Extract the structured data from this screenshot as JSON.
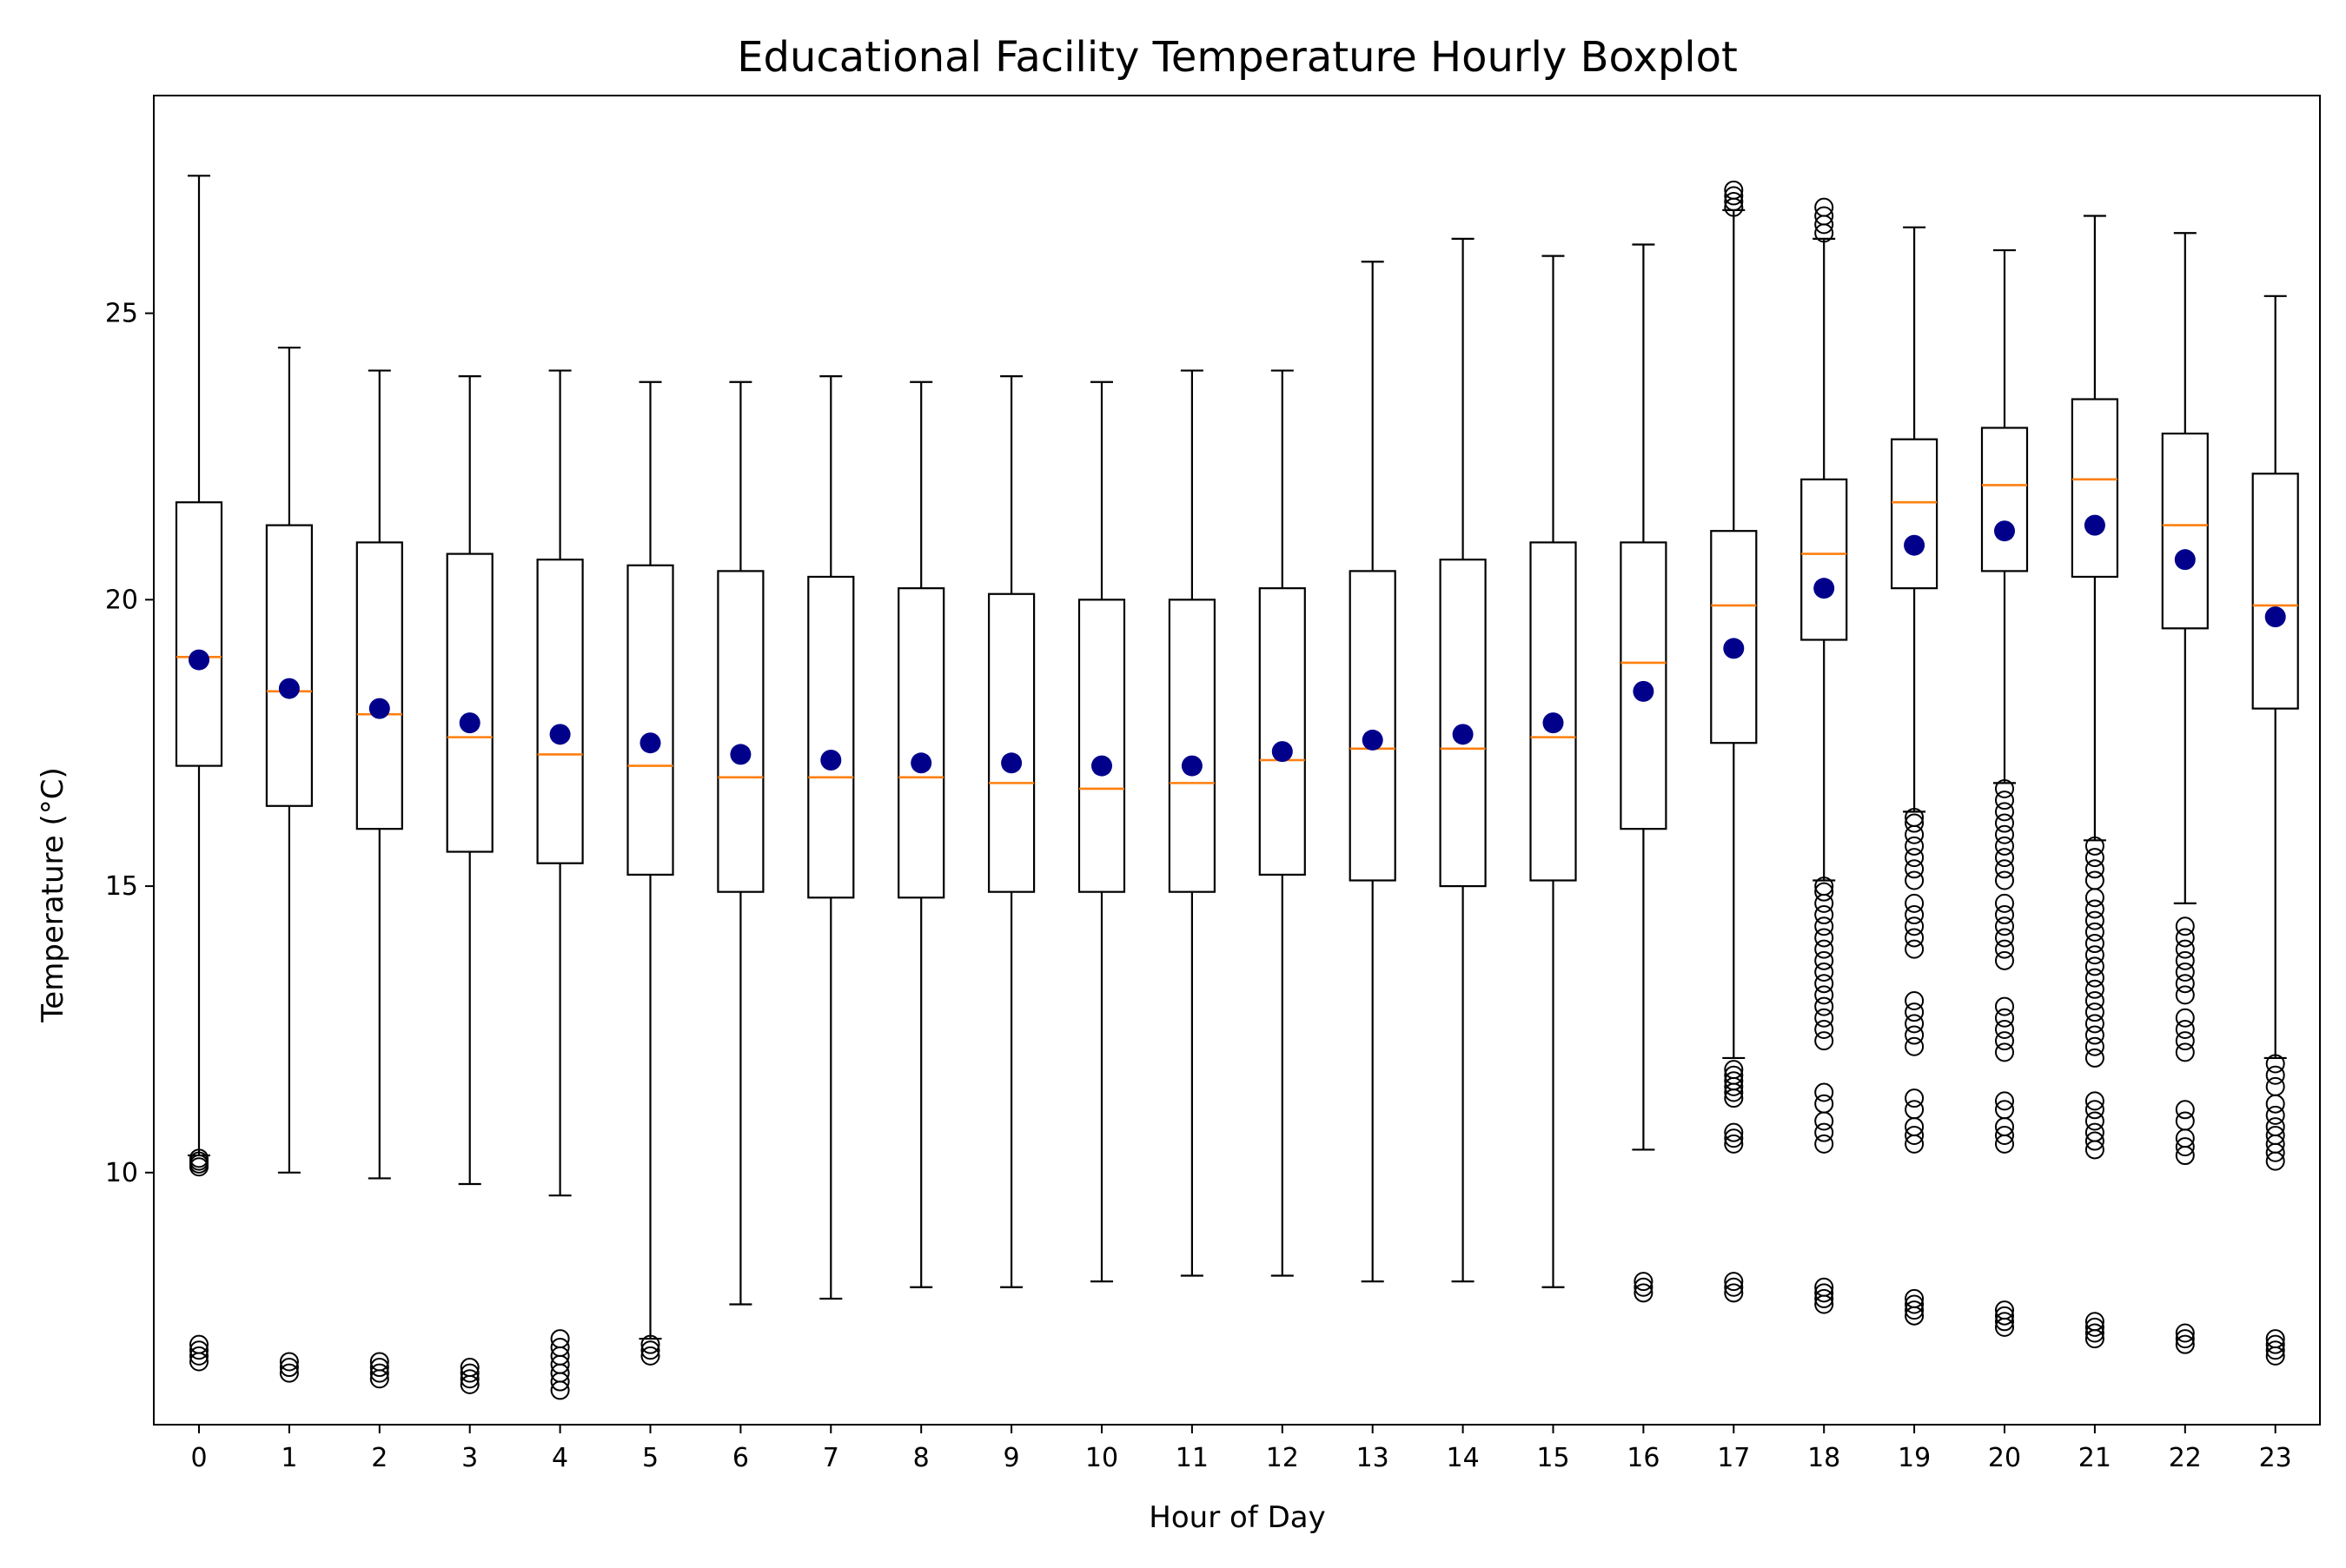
{
  "chart_data": {
    "type": "boxplot",
    "title": "Educational Facility Temperature Hourly Boxplot",
    "xlabel": "Hour of Day",
    "ylabel": "Temperature (°C)",
    "ylim": [
      5.6,
      28.8
    ],
    "yticks": [
      10,
      15,
      20,
      25
    ],
    "grid": false,
    "categories": [
      "0",
      "1",
      "2",
      "3",
      "4",
      "5",
      "6",
      "7",
      "8",
      "9",
      "10",
      "11",
      "12",
      "13",
      "14",
      "15",
      "16",
      "17",
      "18",
      "19",
      "20",
      "21",
      "22",
      "23"
    ],
    "boxes": [
      {
        "whisker_low": 10.3,
        "q1": 17.1,
        "median": 19.0,
        "q3": 21.7,
        "whisker_high": 27.4,
        "mean": 18.95,
        "outliers": [
          10.1,
          10.15,
          10.2,
          10.25,
          6.7,
          6.8,
          6.9,
          7.0
        ]
      },
      {
        "whisker_low": 10.0,
        "q1": 16.4,
        "median": 18.4,
        "q3": 21.3,
        "whisker_high": 24.4,
        "mean": 18.45,
        "outliers": [
          6.5,
          6.6,
          6.7
        ]
      },
      {
        "whisker_low": 9.9,
        "q1": 16.0,
        "median": 18.0,
        "q3": 21.0,
        "whisker_high": 24.0,
        "mean": 18.1,
        "outliers": [
          6.4,
          6.5,
          6.6,
          6.7
        ]
      },
      {
        "whisker_low": 9.8,
        "q1": 15.6,
        "median": 17.6,
        "q3": 20.8,
        "whisker_high": 23.9,
        "mean": 17.85,
        "outliers": [
          6.3,
          6.4,
          6.5,
          6.6
        ]
      },
      {
        "whisker_low": 9.6,
        "q1": 15.4,
        "median": 17.3,
        "q3": 20.7,
        "whisker_high": 24.0,
        "mean": 17.65,
        "outliers": [
          6.2,
          6.35,
          6.5,
          6.65,
          6.8,
          6.95,
          7.1
        ]
      },
      {
        "whisker_low": 7.1,
        "q1": 15.2,
        "median": 17.1,
        "q3": 20.6,
        "whisker_high": 23.8,
        "mean": 17.5,
        "outliers": [
          6.8,
          6.9,
          7.0
        ]
      },
      {
        "whisker_low": 7.7,
        "q1": 14.9,
        "median": 16.9,
        "q3": 20.5,
        "whisker_high": 23.8,
        "mean": 17.3,
        "outliers": []
      },
      {
        "whisker_low": 7.8,
        "q1": 14.8,
        "median": 16.9,
        "q3": 20.4,
        "whisker_high": 23.9,
        "mean": 17.2,
        "outliers": []
      },
      {
        "whisker_low": 8.0,
        "q1": 14.8,
        "median": 16.9,
        "q3": 20.2,
        "whisker_high": 23.8,
        "mean": 17.15,
        "outliers": []
      },
      {
        "whisker_low": 8.0,
        "q1": 14.9,
        "median": 16.8,
        "q3": 20.1,
        "whisker_high": 23.9,
        "mean": 17.15,
        "outliers": []
      },
      {
        "whisker_low": 8.1,
        "q1": 14.9,
        "median": 16.7,
        "q3": 20.0,
        "whisker_high": 23.8,
        "mean": 17.1,
        "outliers": []
      },
      {
        "whisker_low": 8.2,
        "q1": 14.9,
        "median": 16.8,
        "q3": 20.0,
        "whisker_high": 24.0,
        "mean": 17.1,
        "outliers": []
      },
      {
        "whisker_low": 8.2,
        "q1": 15.2,
        "median": 17.2,
        "q3": 20.2,
        "whisker_high": 24.0,
        "mean": 17.35,
        "outliers": []
      },
      {
        "whisker_low": 8.1,
        "q1": 15.1,
        "median": 17.4,
        "q3": 20.5,
        "whisker_high": 25.9,
        "mean": 17.55,
        "outliers": []
      },
      {
        "whisker_low": 8.1,
        "q1": 15.0,
        "median": 17.4,
        "q3": 20.7,
        "whisker_high": 26.3,
        "mean": 17.65,
        "outliers": []
      },
      {
        "whisker_low": 8.0,
        "q1": 15.1,
        "median": 17.6,
        "q3": 21.0,
        "whisker_high": 26.0,
        "mean": 17.85,
        "outliers": []
      },
      {
        "whisker_low": 10.4,
        "q1": 16.0,
        "median": 18.9,
        "q3": 21.0,
        "whisker_high": 26.2,
        "mean": 18.4,
        "outliers": [
          7.9,
          8.0,
          8.1
        ]
      },
      {
        "whisker_low": 12.0,
        "q1": 17.5,
        "median": 19.9,
        "q3": 21.2,
        "whisker_high": 26.8,
        "mean": 19.15,
        "outliers": [
          7.9,
          8.0,
          8.1,
          10.5,
          10.6,
          10.7,
          11.3,
          11.4,
          11.5,
          11.6,
          11.7,
          11.8,
          26.85,
          26.95,
          27.05,
          27.15
        ]
      },
      {
        "whisker_low": 15.1,
        "q1": 19.3,
        "median": 20.8,
        "q3": 22.1,
        "whisker_high": 26.3,
        "mean": 20.2,
        "outliers": [
          7.7,
          7.8,
          7.9,
          8.0,
          10.5,
          10.7,
          10.9,
          11.2,
          11.4,
          12.3,
          12.5,
          12.7,
          12.9,
          13.1,
          13.3,
          13.5,
          13.7,
          13.9,
          14.1,
          14.3,
          14.5,
          14.7,
          14.9,
          15.0,
          26.4,
          26.55,
          26.7,
          26.85
        ]
      },
      {
        "whisker_low": 16.3,
        "q1": 20.2,
        "median": 21.7,
        "q3": 22.8,
        "whisker_high": 26.5,
        "mean": 20.95,
        "outliers": [
          7.5,
          7.6,
          7.7,
          7.8,
          10.5,
          10.65,
          10.8,
          11.1,
          11.3,
          12.2,
          12.4,
          12.6,
          12.8,
          13.0,
          13.9,
          14.1,
          14.3,
          14.5,
          14.7,
          15.1,
          15.3,
          15.5,
          15.7,
          15.9,
          16.1,
          16.2
        ]
      },
      {
        "whisker_low": 16.8,
        "q1": 20.5,
        "median": 22.0,
        "q3": 23.0,
        "whisker_high": 26.1,
        "mean": 21.2,
        "outliers": [
          7.3,
          7.4,
          7.5,
          7.6,
          10.5,
          10.65,
          10.8,
          11.1,
          11.25,
          12.1,
          12.3,
          12.5,
          12.7,
          12.9,
          13.7,
          13.9,
          14.1,
          14.3,
          14.5,
          14.7,
          15.1,
          15.3,
          15.5,
          15.7,
          15.9,
          16.1,
          16.3,
          16.5,
          16.7
        ]
      },
      {
        "whisker_low": 15.8,
        "q1": 20.4,
        "median": 22.1,
        "q3": 23.5,
        "whisker_high": 26.7,
        "mean": 21.3,
        "outliers": [
          7.1,
          7.2,
          7.3,
          7.4,
          10.4,
          10.55,
          10.7,
          10.9,
          11.1,
          11.25,
          12.0,
          12.2,
          12.4,
          12.6,
          12.8,
          13.0,
          13.2,
          13.4,
          13.6,
          13.8,
          14.0,
          14.2,
          14.4,
          14.6,
          14.8,
          15.1,
          15.3,
          15.5,
          15.7
        ]
      },
      {
        "whisker_low": 14.7,
        "q1": 19.5,
        "median": 21.3,
        "q3": 22.9,
        "whisker_high": 26.4,
        "mean": 20.7,
        "outliers": [
          7.0,
          7.1,
          7.2,
          10.3,
          10.45,
          10.6,
          10.9,
          11.1,
          12.1,
          12.3,
          12.5,
          12.7,
          13.1,
          13.3,
          13.5,
          13.7,
          13.9,
          14.1,
          14.3
        ]
      },
      {
        "whisker_low": 12.0,
        "q1": 18.1,
        "median": 19.9,
        "q3": 22.2,
        "whisker_high": 25.3,
        "mean": 19.7,
        "outliers": [
          6.8,
          6.9,
          7.0,
          7.1,
          10.2,
          10.35,
          10.5,
          10.65,
          10.8,
          11.0,
          11.2,
          11.5,
          11.7,
          11.9
        ]
      }
    ],
    "colors": {
      "box": "#000000",
      "median": "#ff7f0e",
      "mean": "#00008b",
      "outlier": "#000000",
      "background": "#ffffff"
    }
  }
}
